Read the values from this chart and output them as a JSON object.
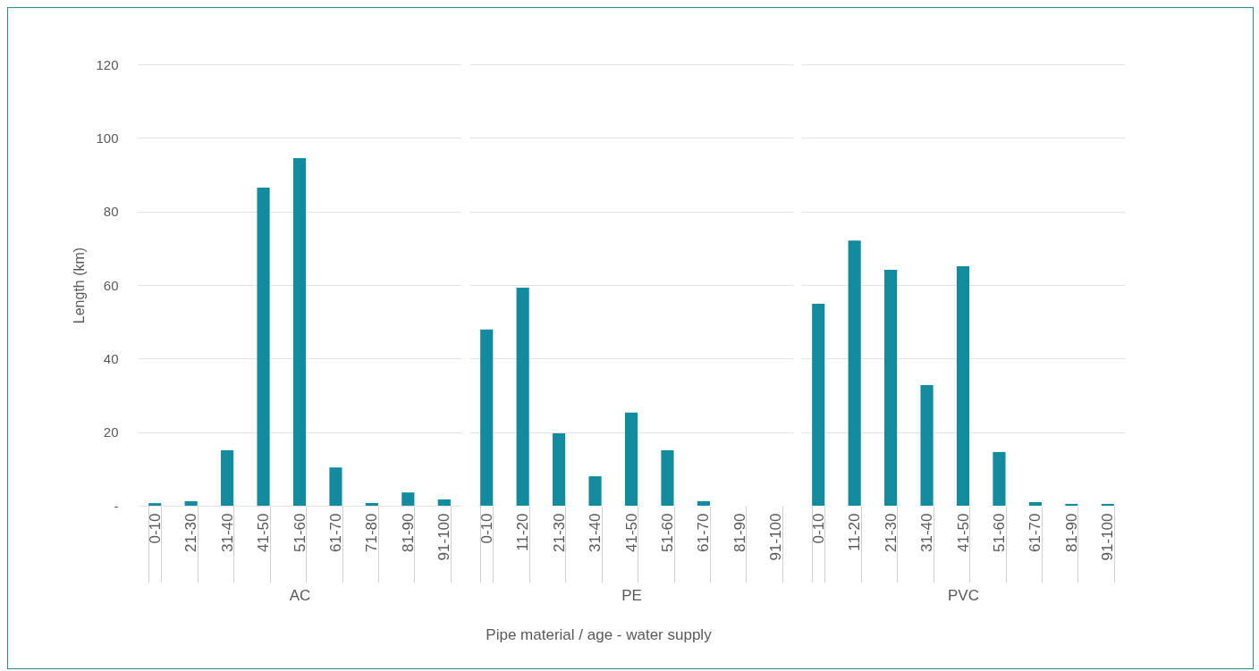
{
  "chart_data": [
    {
      "type": "bar",
      "ylabel": "Length (km)",
      "xlabel": "AC",
      "annotations": [
        "Pipe material / age - water supply"
      ],
      "categories": [
        "0-10",
        "21-30",
        "31-40",
        "41-50",
        "51-60",
        "61-70",
        "71-80",
        "81-90",
        "91-100"
      ],
      "values": [
        0.7,
        1.2,
        15.1,
        86.5,
        94.5,
        10.4,
        0.7,
        3.6,
        1.7
      ],
      "color": "#138b9f",
      "ylim": [
        0,
        120
      ],
      "yticks": [
        {
          "value": 0,
          "label": "-"
        },
        20,
        40,
        60,
        80,
        100,
        120
      ],
      "grid": "y"
    },
    {
      "type": "bar",
      "xlabel": "PE",
      "categories": [
        "0-10",
        "11-20",
        "21-30",
        "31-40",
        "41-50",
        "51-60",
        "61-70",
        "81-90",
        "91-100"
      ],
      "values": [
        47.9,
        59.3,
        19.7,
        8.0,
        25.3,
        15.1,
        1.2,
        0,
        0
      ],
      "color": "#138b9f",
      "ylim": [
        0,
        120
      ],
      "yticks": [
        20,
        40,
        60,
        80,
        100,
        120
      ],
      "grid": "y",
      "tick_labels": "x"
    },
    {
      "type": "bar",
      "xlabel": "PVC",
      "categories": [
        "0-10",
        "11-20",
        "21-30",
        "31-40",
        "41-50",
        "51-60",
        "61-70",
        "81-90",
        "91-100"
      ],
      "values": [
        54.9,
        72.1,
        64.1,
        32.8,
        65.1,
        14.6,
        1.0,
        0.5,
        0.5
      ],
      "color": "#138b9f",
      "ylim": [
        0,
        120
      ],
      "yticks": [
        20,
        40,
        60,
        80,
        100,
        120
      ],
      "grid": "y",
      "tick_labels": "x"
    }
  ]
}
